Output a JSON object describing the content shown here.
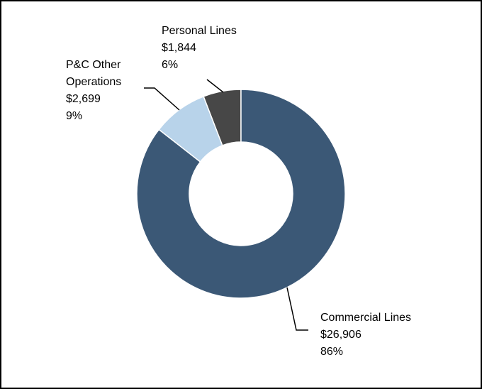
{
  "chart_data": {
    "type": "donut",
    "categories": [
      "Commercial Lines",
      "P&C Other Operations",
      "Personal Lines"
    ],
    "values": [
      26906,
      2699,
      1844
    ],
    "value_labels": [
      "$26,906",
      "$2,699",
      "$1,844"
    ],
    "share_labels": [
      "86%",
      "9%",
      "6%"
    ],
    "colors": [
      "#3b5876",
      "#b8d3ea",
      "#474747"
    ]
  }
}
